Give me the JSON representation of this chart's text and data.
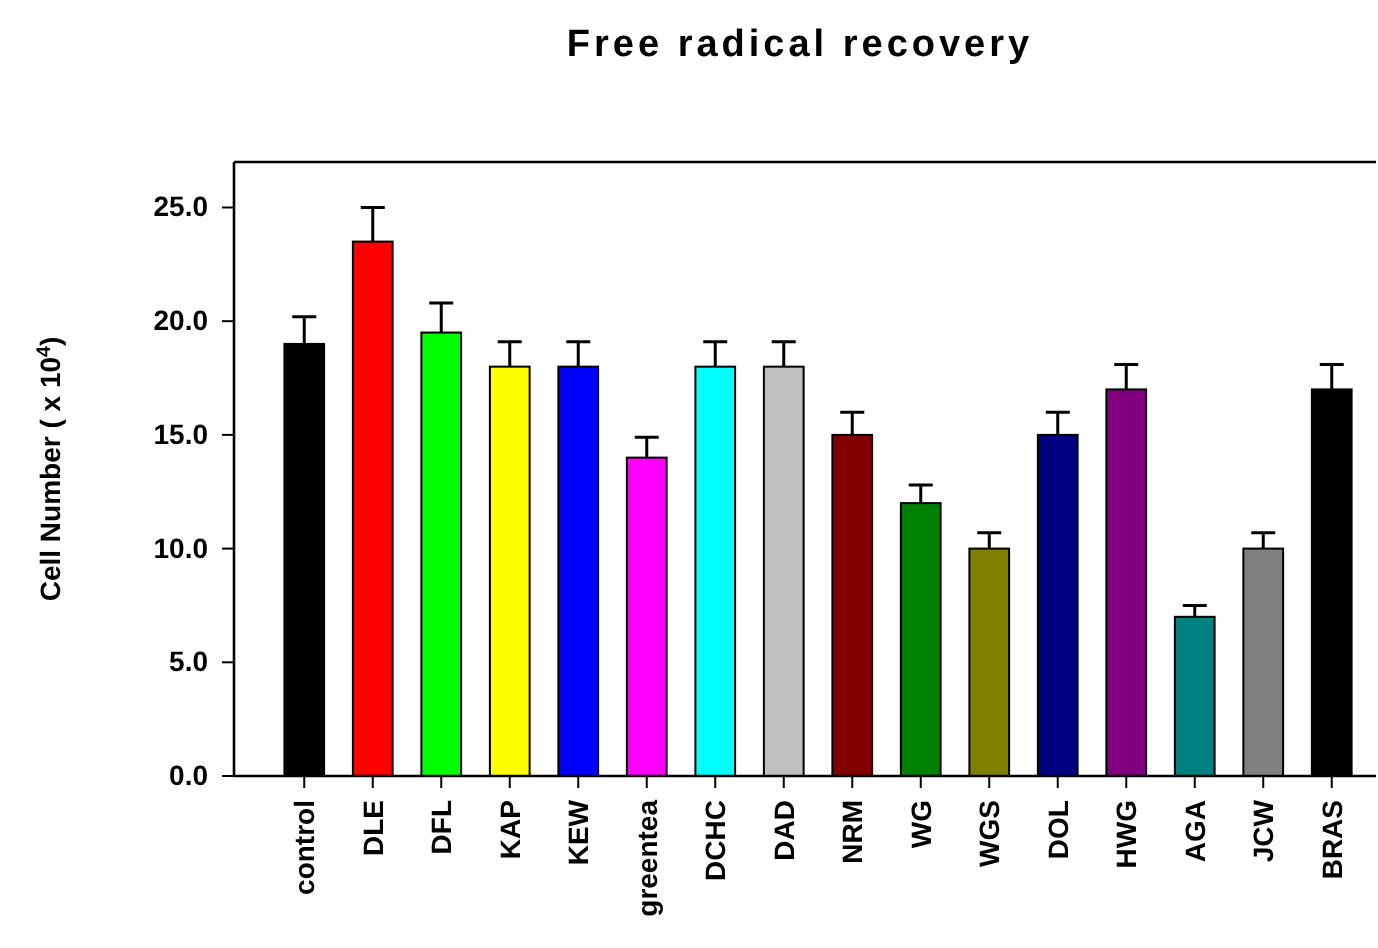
{
  "chart_data": {
    "type": "bar",
    "title": "Free radical recovery",
    "ylabel": "Cell Number ( x 10$^{4}$)",
    "categories": [
      "control",
      "DLE",
      "DFL",
      "KAP",
      "KEW",
      "greentea",
      "DCHC",
      "DAD",
      "NRM",
      "WG",
      "WGS",
      "DOL",
      "HWG",
      "AGA",
      "JCW",
      "BRAS"
    ],
    "values": [
      19,
      23.5,
      19.5,
      18,
      18,
      14,
      18,
      18,
      15,
      12,
      10,
      15,
      17,
      7,
      10,
      17
    ],
    "errors": [
      1.2,
      1.5,
      1.3,
      1.1,
      1.1,
      0.9,
      1.1,
      1.1,
      1.0,
      0.8,
      0.7,
      1.0,
      1.1,
      0.5,
      0.7,
      1.1
    ],
    "colors": [
      "#000000",
      "#ff0000",
      "#00ff00",
      "#ffff00",
      "#0000ff",
      "#ff00ff",
      "#00ffff",
      "#c0c0c0",
      "#800000",
      "#008000",
      "#808000",
      "#000080",
      "#800080",
      "#008080",
      "#808080",
      "#000000"
    ],
    "ylim": [
      0,
      27
    ],
    "yticks": [
      {
        "value": 0,
        "label": "0.0"
      },
      {
        "value": 5,
        "label": "5.0"
      },
      {
        "value": 10,
        "label": "10.0"
      },
      {
        "value": 15,
        "label": "15.0"
      },
      {
        "value": 20,
        "label": "20.0"
      },
      {
        "value": 25,
        "label": "25.0"
      }
    ],
    "grid": false
  }
}
